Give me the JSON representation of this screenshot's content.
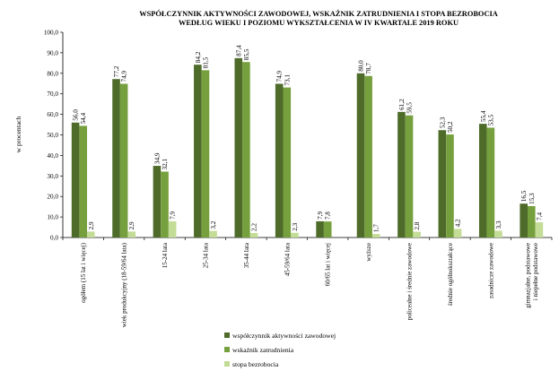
{
  "chart_data": {
    "type": "bar",
    "title": "WSPÓŁCZYNNIK AKTYWNOŚCI ZAWODOWEJ, WSKAŹNIK ZATRUDNIENIA I STOPA BEZROBOCIA",
    "subtitle": "WEDŁUG WIEKU  I POZIOMU WYKSZTAŁCENIA W IV KWARTALE 2019 ROKU",
    "xlabel": "",
    "ylabel": "w procentach",
    "ylim": [
      0,
      100
    ],
    "yticks": [
      "0,0",
      "10,0",
      "20,0",
      "30,0",
      "40,0",
      "50,0",
      "60,0",
      "70,0",
      "80,0",
      "90,0",
      "100,0"
    ],
    "grid": false,
    "legend_position": "bottom",
    "categories": [
      "ogółem (15 lat i więcej)",
      "wiek produkcyjny (18-59/64 lata)",
      "15-24 lata",
      "25-34 lata",
      "35-44 lata",
      "45-59/64 lata",
      "60/65 lat i więcej",
      "wyższe",
      "policealne i średnie zawodowe",
      "średnie ogólnokształcące",
      "zasadnicze zawodowe",
      "gimnazjalne, podstawowe i niepełne podstawowe"
    ],
    "series": [
      {
        "name": "współczynnik aktywności zawodowej",
        "color": "#4e6b2a",
        "values": [
          56.0,
          77.2,
          34.9,
          84.2,
          87.4,
          74.9,
          7.9,
          80.0,
          61.2,
          52.3,
          55.4,
          16.5
        ],
        "labels": [
          "56,0",
          "77,2",
          "34,9",
          "84,2",
          "87,4",
          "74,9",
          "7,9",
          "80,0",
          "61,2",
          "52,3",
          "55,4",
          "16,5"
        ]
      },
      {
        "name": "wskaźnik zatrudnienia",
        "color": "#76a03e",
        "values": [
          54.4,
          74.9,
          32.1,
          81.5,
          85.5,
          73.1,
          7.8,
          78.7,
          59.5,
          50.2,
          53.5,
          15.3
        ],
        "labels": [
          "54,4",
          "74,9",
          "32,1",
          "81,5",
          "85,5",
          "73,1",
          "7,8",
          "78,7",
          "59,5",
          "50,2",
          "53,5",
          "15,3"
        ]
      },
      {
        "name": "stopa bezrobocia",
        "color": "#c3dc96",
        "values": [
          2.9,
          2.9,
          7.9,
          3.2,
          2.2,
          2.3,
          null,
          1.7,
          2.8,
          4.2,
          3.3,
          7.4
        ],
        "labels": [
          "2,9",
          "2,9",
          "7,9",
          "3,2",
          "2,2",
          "2,3",
          "",
          "1,7",
          "2,8",
          "4,2",
          "3,3",
          "7,4"
        ]
      }
    ]
  }
}
